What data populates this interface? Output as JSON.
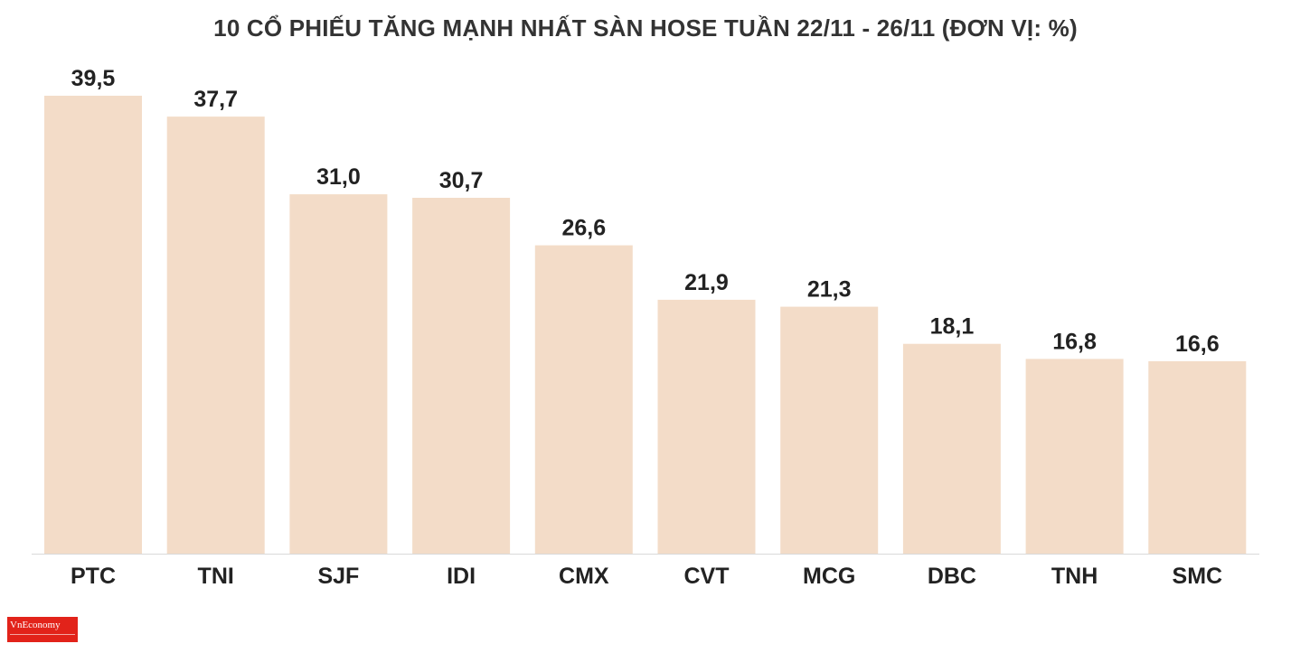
{
  "chart_data": {
    "type": "bar",
    "title": "10 CỔ PHIẾU TĂNG MẠNH NHẤT SÀN HOSE TUẦN 22/11 - 26/11 (ĐƠN VỊ: %)",
    "categories": [
      "PTC",
      "TNI",
      "SJF",
      "IDI",
      "CMX",
      "CVT",
      "MCG",
      "DBC",
      "TNH",
      "SMC"
    ],
    "values": [
      39.5,
      37.7,
      31.0,
      30.7,
      26.6,
      21.9,
      21.3,
      18.1,
      16.8,
      16.6
    ],
    "value_labels": [
      "39,5",
      "37,7",
      "31,0",
      "30,7",
      "26,6",
      "21,9",
      "21,3",
      "18,1",
      "16,8",
      "16,6"
    ],
    "xlabel": "",
    "ylabel": "",
    "ylim": [
      0,
      39.5
    ],
    "grid": false,
    "legend": "none",
    "bar_color": "#f3dcc8",
    "axis_color": "#d9d9d9",
    "label_color": "#222222"
  },
  "logo": {
    "name": "VnEconomy",
    "color": "#e2231a"
  }
}
